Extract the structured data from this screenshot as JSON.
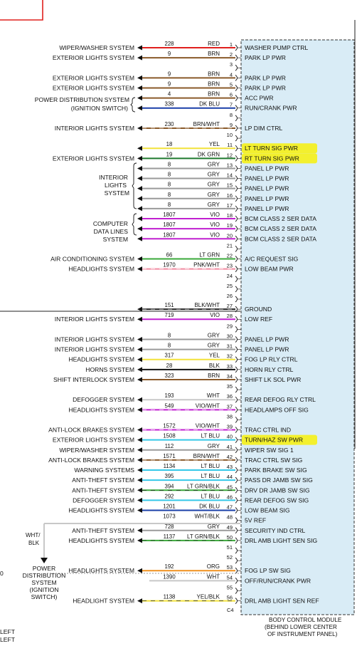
{
  "module": {
    "caption_lines": [
      "BODY CONTROL MODULE",
      "(BEHIND LOWER CENTER",
      "OF INSTRUMENT PANEL)"
    ],
    "connector_label": "C4"
  },
  "rows": [
    {
      "pin": "1",
      "circuit": "228",
      "color": "RED",
      "wire": "#e0201e",
      "fn": "WASHER PUMP CTRL",
      "sys": "WIPER/WASHER SYSTEM"
    },
    {
      "pin": "2",
      "circuit": "9",
      "color": "BRN",
      "wire": "#8a5a2a",
      "fn": "PARK LP PWR",
      "sys": "EXTERIOR LIGHTS SYSTEM"
    },
    {
      "pin": "3"
    },
    {
      "pin": "4",
      "circuit": "9",
      "color": "BRN",
      "wire": "#8a5a2a",
      "fn": "PARK LP PWR",
      "sys": "EXTERIOR LIGHTS SYSTEM"
    },
    {
      "pin": "5",
      "circuit": "9",
      "color": "BRN",
      "wire": "#8a5a2a",
      "fn": "PARK LP PWR",
      "sys": "EXTERIOR LIGHTS SYSTEM"
    },
    {
      "pin": "6",
      "circuit": "4",
      "color": "BRN",
      "wire": "#8a5a2a",
      "fn": "ACC PWR"
    },
    {
      "pin": "7",
      "circuit": "338",
      "color": "DK BLU",
      "wire": "#1a3fa8",
      "fn": "RUN/CRANK PWR"
    },
    {
      "pin": "8"
    },
    {
      "pin": "9",
      "circuit": "230",
      "color": "BRN/WHT",
      "wire": "#8a5a2a",
      "fn": "LP DIM CTRL",
      "sys": "INTERIOR LIGHTS SYSTEM"
    },
    {
      "pin": "10"
    },
    {
      "pin": "11",
      "circuit": "18",
      "color": "YEL",
      "wire": "#f2e23a",
      "fn": "LT TURN SIG PWR",
      "hl": true
    },
    {
      "pin": "12",
      "circuit": "19",
      "color": "DK GRN",
      "wire": "#1e7a2e",
      "fn": "RT TURN SIG PWR",
      "hl": true,
      "sys": "EXTERIOR LIGHTS SYSTEM"
    },
    {
      "pin": "13",
      "circuit": "8",
      "color": "GRY",
      "wire": "#9a9a9a",
      "fn": "PANEL LP PWR"
    },
    {
      "pin": "14",
      "circuit": "8",
      "color": "GRY",
      "wire": "#9a9a9a",
      "fn": "PANEL LP PWR"
    },
    {
      "pin": "15",
      "circuit": "8",
      "color": "GRY",
      "wire": "#9a9a9a",
      "fn": "PANEL LP PWR"
    },
    {
      "pin": "16",
      "circuit": "8",
      "color": "GRY",
      "wire": "#9a9a9a",
      "fn": "PANEL LP PWR"
    },
    {
      "pin": "17",
      "circuit": "8",
      "color": "GRY",
      "wire": "#9a9a9a",
      "fn": "PANEL LP PWR"
    },
    {
      "pin": "18",
      "circuit": "1807",
      "color": "VIO",
      "wire": "#c020d0",
      "fn": "BCM CLASS 2 SER DATA"
    },
    {
      "pin": "19",
      "circuit": "1807",
      "color": "VIO",
      "wire": "#c020d0",
      "fn": "BCM CLASS 2 SER DATA"
    },
    {
      "pin": "20",
      "circuit": "1807",
      "color": "VIO",
      "wire": "#c020d0",
      "fn": "BCM CLASS 2 SER DATA"
    },
    {
      "pin": "21"
    },
    {
      "pin": "22",
      "circuit": "66",
      "color": "LT GRN",
      "wire": "#3aa83a",
      "fn": "A/C REQUEST SIG",
      "sys": "AIR CONDITIONING SYSTEM"
    },
    {
      "pin": "23",
      "circuit": "1970",
      "color": "PNK/WHT",
      "wire": "#f08aa0",
      "fn": "LOW BEAM PWR",
      "sys": "HEADLIGHTS SYSTEM"
    },
    {
      "pin": "24"
    },
    {
      "pin": "25"
    },
    {
      "pin": "26"
    },
    {
      "pin": "27",
      "circuit": "151",
      "color": "BLK/WHT",
      "wire": "#222222",
      "fn": "GROUND"
    },
    {
      "pin": "28",
      "circuit": "719",
      "color": "VIO",
      "wire": "#c020d0",
      "fn": "LOW REF",
      "sys": "INTERIOR LIGHTS SYSTEM"
    },
    {
      "pin": "29"
    },
    {
      "pin": "30",
      "circuit": "8",
      "color": "GRY",
      "wire": "#9a9a9a",
      "fn": "PANEL LP PWR",
      "sys": "INTERIOR LIGHTS SYSTEM"
    },
    {
      "pin": "31",
      "circuit": "8",
      "color": "GRY",
      "wire": "#9a9a9a",
      "fn": "PANEL LP PWR",
      "sys": "INTERIOR LIGHTS SYSTEM"
    },
    {
      "pin": "32",
      "circuit": "317",
      "color": "YEL",
      "wire": "#f2e23a",
      "fn": "FOG LP RLY CTRL",
      "sys": "HEADLIGHTS SYSTEM"
    },
    {
      "pin": "33",
      "circuit": "28",
      "color": "BLK",
      "wire": "#111111",
      "fn": "HORN RLY CTRL",
      "sys": "HORNS SYSTEM"
    },
    {
      "pin": "34",
      "circuit": "323",
      "color": "BRN",
      "wire": "#8a5a2a",
      "fn": "SHIFT LK SOL PWR",
      "sys": "SHIFT INTERLOCK SYSTEM"
    },
    {
      "pin": "35"
    },
    {
      "pin": "36",
      "circuit": "193",
      "color": "WHT",
      "wire": "#c8c8c8",
      "fn": "REAR DEFOG RLY CTRL",
      "sys": "DEFOGGER SYSTEM"
    },
    {
      "pin": "37",
      "circuit": "549",
      "color": "VIO/WHT",
      "wire": "#c020d0",
      "fn": "HEADLAMPS OFF SIG",
      "sys": "HEADLIGHTS SYSTEM"
    },
    {
      "pin": "38"
    },
    {
      "pin": "39",
      "circuit": "1572",
      "color": "VIO/WHT",
      "wire": "#c020d0",
      "fn": "TRAC CTRL IND",
      "sys": "ANTI-LOCK BRAKES SYSTEM"
    },
    {
      "pin": "40",
      "circuit": "1508",
      "color": "LT BLU",
      "wire": "#35c8e8",
      "fn": "TURN/HAZ SW PWR",
      "hl": true,
      "sys": "EXTERIOR LIGHTS SYSTEM"
    },
    {
      "pin": "41",
      "circuit": "112",
      "color": "GRY",
      "wire": "#9a9a9a",
      "fn": "WIPER SW SIG 1",
      "sys": "WIPER/WASHER SYSTEM"
    },
    {
      "pin": "42",
      "circuit": "1571",
      "color": "BRN/WHT",
      "wire": "#8a5a2a",
      "fn": "TRAC CTRL SW SIG",
      "sys": "ANTI-LOCK BRAKES SYSTEM"
    },
    {
      "pin": "43",
      "circuit": "1134",
      "color": "LT BLU",
      "wire": "#35c8e8",
      "fn": "PARK BRAKE SW SIG",
      "sys": "WARNING SYSTEMS"
    },
    {
      "pin": "44",
      "circuit": "395",
      "color": "LT BLU",
      "wire": "#35c8e8",
      "fn": "PASS DR JAMB SW SIG",
      "sys": "ANTI-THEFT SYSTEM"
    },
    {
      "pin": "45",
      "circuit": "394",
      "color": "LT GRN/BLK",
      "wire": "#3aa83a",
      "fn": "DRV DR JAMB SW SIG",
      "sys": "ANTI-THEFT SYSTEM"
    },
    {
      "pin": "46",
      "circuit": "292",
      "color": "LT BLU",
      "wire": "#35c8e8",
      "fn": "REAR DEFOG SW SIG",
      "sys": "DEFOGGER SYSTEM"
    },
    {
      "pin": "47",
      "circuit": "1201",
      "color": "DK BLU",
      "wire": "#1a3fa8",
      "fn": "LOW BEAM SIG",
      "sys": "HEADLIGHTS SYSTEM"
    },
    {
      "pin": "48",
      "circuit": "1073",
      "color": "WHT/BLK",
      "wire": "#c8c8c8",
      "fn": "5V REF"
    },
    {
      "pin": "49",
      "circuit": "728",
      "color": "GRY",
      "wire": "#9a9a9a",
      "fn": "SECURITY IND CTRL",
      "sys": "ANTI-THEFT SYSTEM"
    },
    {
      "pin": "50",
      "circuit": "1137",
      "color": "LT GRN/BLK",
      "wire": "#3aa83a",
      "fn": "DRL AMB LIGHT SEN SIG",
      "sys": "HEADLIGHTS SYSTEM"
    },
    {
      "pin": "51"
    },
    {
      "pin": "52"
    },
    {
      "pin": "53",
      "circuit": "192",
      "color": "ORG",
      "wire": "#f0901e",
      "fn": "FOG LP SW SIG",
      "sys": "HEADLIGHTS SYSTEM"
    },
    {
      "pin": "54",
      "circuit": "1390",
      "color": "WHT",
      "wire": "#c8c8c8",
      "fn": "OFF/RUN/CRANK PWR"
    },
    {
      "pin": "55"
    },
    {
      "pin": "56",
      "circuit": "1138",
      "color": "YEL/BLK",
      "wire": "#f2e23a",
      "fn": "DRL AMB LIGHT SEN REF",
      "sys": "HEADLIGHT SYSTEM"
    }
  ],
  "groups": [
    {
      "lines": [
        "POWER DISTRIBUTION SYSTEM",
        "(IGNITION SWITCH)"
      ]
    },
    {
      "lines": [
        "INTERIOR",
        "LIGHTS",
        "SYSTEM"
      ]
    },
    {
      "lines": [
        "COMPUTER",
        "DATA LINES",
        "SYSTEM"
      ]
    }
  ],
  "power_dist": {
    "wire_label": [
      "WHT/",
      "BLK"
    ],
    "lines": [
      "POWER",
      "DISTRIBUTION",
      "SYSTEM",
      "(IGNITION",
      "SWITCH)"
    ]
  },
  "edge_text": {
    "left_zero": "0",
    "bottom_left": [
      "LEFT",
      "LEFT"
    ]
  }
}
